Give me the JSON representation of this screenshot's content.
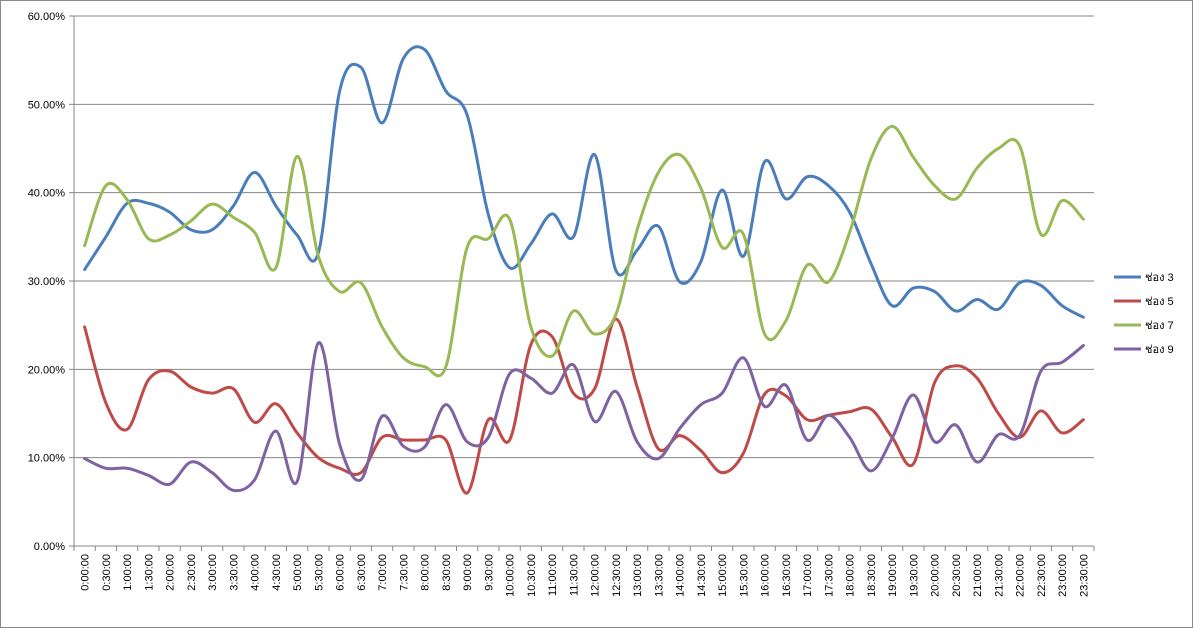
{
  "chart_data": {
    "type": "line",
    "title": "",
    "xlabel": "",
    "ylabel": "",
    "ylim": [
      0,
      60
    ],
    "y_ticks": [
      "0.00%",
      "10.00%",
      "20.00%",
      "30.00%",
      "40.00%",
      "50.00%",
      "60.00%"
    ],
    "y_tick_values": [
      0,
      10,
      20,
      30,
      40,
      50,
      60
    ],
    "grid": true,
    "legend_position": "right",
    "smooth": true,
    "categories": [
      "0:00:00",
      "0:30:00",
      "1:00:00",
      "1:30:00",
      "2:00:00",
      "2:30:00",
      "3:00:00",
      "3:30:00",
      "4:00:00",
      "4:30:00",
      "5:00:00",
      "5:30:00",
      "6:00:00",
      "6:30:00",
      "7:00:00",
      "7:30:00",
      "8:00:00",
      "8:30:00",
      "9:00:00",
      "9:30:00",
      "10:00:00",
      "10:30:00",
      "11:00:00",
      "11:30:00",
      "12:00:00",
      "12:30:00",
      "13:00:00",
      "13:30:00",
      "14:00:00",
      "14:30:00",
      "15:00:00",
      "15:30:00",
      "16:00:00",
      "16:30:00",
      "17:00:00",
      "17:30:00",
      "18:00:00",
      "18:30:00",
      "19:00:00",
      "19:30:00",
      "20:00:00",
      "20:30:00",
      "21:00:00",
      "21:30:00",
      "22:00:00",
      "22:30:00",
      "23:00:00",
      "23:30:00"
    ],
    "series": [
      {
        "name": "ช่อง 3",
        "color": "#4a7ebb",
        "values": [
          31.3,
          35,
          38.8,
          38.8,
          37.8,
          35.8,
          35.8,
          38.5,
          42.3,
          38.5,
          35.2,
          33.2,
          51.5,
          54.2,
          47.9,
          55.2,
          56.2,
          51.5,
          48.8,
          37.5,
          31.5,
          34.2,
          37.6,
          35,
          44.3,
          31.2,
          33.5,
          36.2,
          29.9,
          32.2,
          40.3,
          32.8,
          43.5,
          39.3,
          41.8,
          40.8,
          37.8,
          32,
          27.2,
          29.2,
          28.8,
          26.6,
          27.9,
          26.8,
          29.8,
          29.5,
          27.2,
          25.9
        ]
      },
      {
        "name": "ช่อง 5",
        "color": "#be4b48",
        "values": [
          24.8,
          16.2,
          13.2,
          18.8,
          19.8,
          18,
          17.3,
          17.8,
          14,
          16.1,
          12.8,
          10,
          8.8,
          8.3,
          12.3,
          12,
          12,
          12,
          6,
          14.3,
          12,
          22.8,
          23.7,
          17.3,
          17.8,
          25.7,
          18,
          11,
          12.5,
          10.8,
          8.3,
          10.5,
          17.2,
          17,
          14.3,
          14.8,
          15.2,
          15.5,
          12.3,
          9.3,
          18.5,
          20.4,
          19,
          15,
          12.3,
          15.3,
          12.8,
          14.3
        ]
      },
      {
        "name": "ช่อง 7",
        "color": "#98b954",
        "values": [
          34,
          40.8,
          39.2,
          34.8,
          35.2,
          36.8,
          38.7,
          37.2,
          35.5,
          31.5,
          44.1,
          32.8,
          28.8,
          29.8,
          24.8,
          21.3,
          20.3,
          20.3,
          33.8,
          34.8,
          37,
          24.8,
          21.5,
          26.6,
          24,
          26.2,
          35.8,
          42.3,
          44.3,
          40.5,
          33.8,
          35.3,
          24,
          25.5,
          31.8,
          29.9,
          35.5,
          43.8,
          47.5,
          44,
          40.8,
          39.3,
          42.8,
          45,
          45.3,
          35.3,
          39.1,
          37
        ]
      },
      {
        "name": "ช่อง 9",
        "color": "#7e62a1",
        "values": [
          9.9,
          8.8,
          8.8,
          8,
          7,
          9.5,
          8.3,
          6.3,
          7.5,
          13,
          7.3,
          23,
          11.5,
          7.5,
          14.7,
          11.3,
          11.2,
          16,
          11.8,
          12.3,
          19.5,
          19,
          17.3,
          20.5,
          14.1,
          17.5,
          11.8,
          9.9,
          13.3,
          16,
          17.3,
          21.3,
          15.8,
          18.2,
          12,
          14.8,
          12.3,
          8.5,
          12.2,
          17.1,
          11.8,
          13.7,
          9.5,
          12.6,
          12.5,
          19.8,
          20.8,
          22.7
        ]
      }
    ]
  }
}
